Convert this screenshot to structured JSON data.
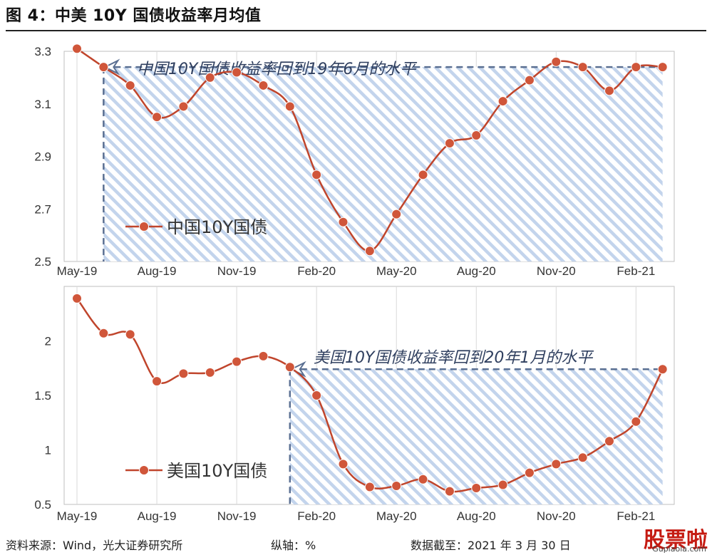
{
  "figure_title": "图 4：中美 10Y 国债收益率月均值",
  "footer": {
    "source": "资料来源：Wind，光大证券研究所",
    "axis_note": "纵轴：%",
    "date_note": "数据截至：2021 年 3 月 30 日"
  },
  "watermark": {
    "main": "股票啦",
    "sub": "Gupiaola.com"
  },
  "colors": {
    "series": "#c0452c",
    "marker": "#d0563a",
    "dash": "#5a6f92",
    "hatch": "#b7cbe8",
    "grid": "#d9d9d9"
  },
  "chart_data": [
    {
      "type": "line",
      "categories": [
        "May-19",
        "Jun-19",
        "Jul-19",
        "Aug-19",
        "Sep-19",
        "Oct-19",
        "Nov-19",
        "Dec-19",
        "Jan-20",
        "Feb-20",
        "Mar-20",
        "Apr-20",
        "May-20",
        "Jun-20",
        "Jul-20",
        "Aug-20",
        "Sep-20",
        "Oct-20",
        "Nov-20",
        "Dec-20",
        "Jan-21",
        "Feb-21",
        "Mar-21"
      ],
      "x_tick_labels": [
        "May-19",
        "Aug-19",
        "Nov-19",
        "Feb-20",
        "May-20",
        "Aug-20",
        "Nov-20",
        "Feb-21"
      ],
      "ylim": [
        2.5,
        3.3
      ],
      "y_ticks": [
        "3.3",
        "3.1",
        "2.9",
        "2.7",
        "2.5"
      ],
      "series": [
        {
          "name": "中国10Y国债",
          "values": [
            3.31,
            3.24,
            3.17,
            3.05,
            3.09,
            3.2,
            3.22,
            3.17,
            3.09,
            2.83,
            2.65,
            2.54,
            2.68,
            2.83,
            2.95,
            2.98,
            3.11,
            3.19,
            3.26,
            3.24,
            3.15,
            3.24,
            3.24
          ]
        }
      ],
      "legend_position": "lower-left",
      "grid": true,
      "annotation": {
        "text": "中国10Y国债收益率回到19年6月的水平",
        "reference_category": "Jun-19",
        "reference_value": 3.24
      }
    },
    {
      "type": "line",
      "categories": [
        "May-19",
        "Jun-19",
        "Jul-19",
        "Aug-19",
        "Sep-19",
        "Oct-19",
        "Nov-19",
        "Dec-19",
        "Jan-20",
        "Feb-20",
        "Mar-20",
        "Apr-20",
        "May-20",
        "Jun-20",
        "Jul-20",
        "Aug-20",
        "Sep-20",
        "Oct-20",
        "Nov-20",
        "Dec-20",
        "Jan-21",
        "Feb-21",
        "Mar-21"
      ],
      "x_tick_labels": [
        "May-19",
        "Aug-19",
        "Nov-19",
        "Feb-20",
        "May-20",
        "Aug-20",
        "Nov-20",
        "Feb-21"
      ],
      "ylim": [
        0.5,
        2.5
      ],
      "y_ticks": [
        "2",
        "1.5",
        "1",
        "0.5"
      ],
      "series": [
        {
          "name": "美国10Y国债",
          "values": [
            2.39,
            2.07,
            2.06,
            1.63,
            1.7,
            1.71,
            1.81,
            1.86,
            1.76,
            1.5,
            0.87,
            0.66,
            0.67,
            0.73,
            0.62,
            0.65,
            0.68,
            0.79,
            0.87,
            0.93,
            1.08,
            1.26,
            1.74
          ]
        }
      ],
      "legend_position": "lower-left",
      "grid": true,
      "annotation": {
        "text": "美国10Y国债收益率回到20年1月的水平",
        "reference_category": "Jan-20",
        "reference_value": 1.74
      }
    }
  ]
}
